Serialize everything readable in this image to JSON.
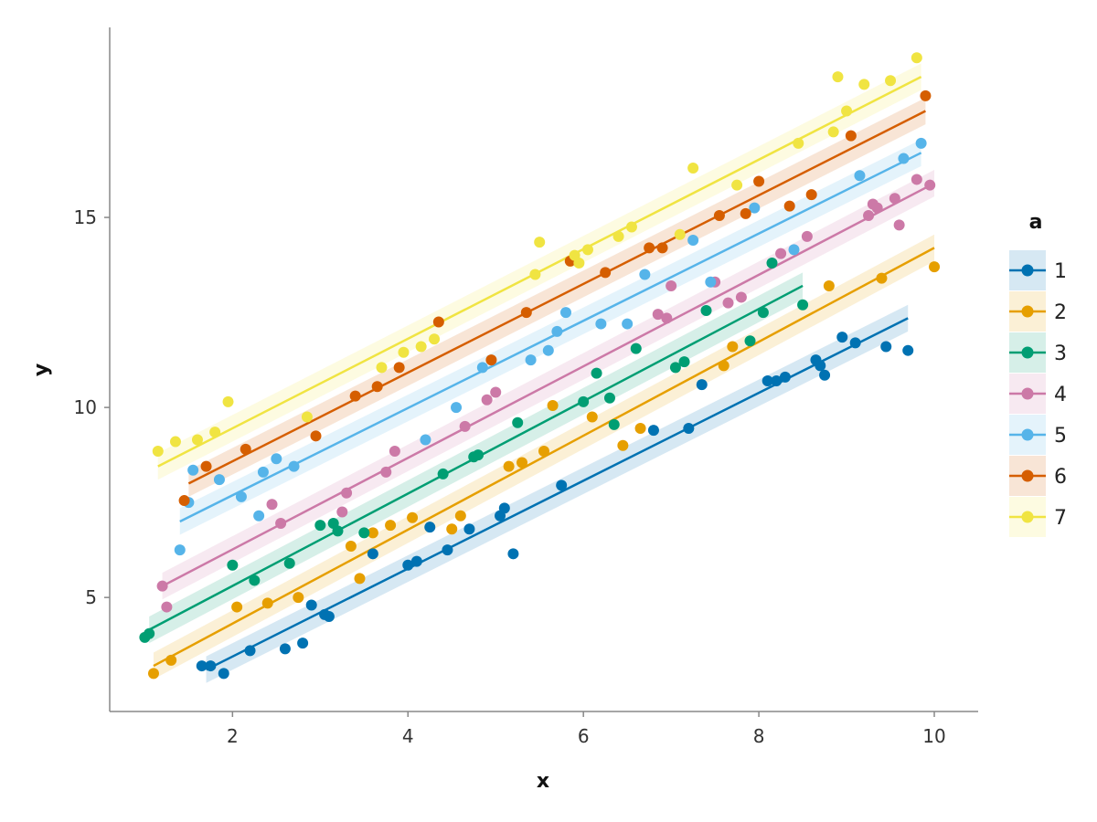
{
  "chart_data": {
    "type": "scatter",
    "xlabel": "x",
    "ylabel": "y",
    "xlim": [
      0.6,
      10.5
    ],
    "ylim": [
      2.0,
      20.0
    ],
    "x_ticks": [
      2,
      4,
      6,
      8,
      10
    ],
    "y_ticks": [
      5,
      10,
      15
    ],
    "grid": false,
    "legend": {
      "title": "a",
      "position": "right"
    },
    "series": [
      {
        "name": "1",
        "color": "#0072B2",
        "fit": {
          "x": [
            1.7,
            9.7
          ],
          "y": [
            3.1,
            12.35
          ]
        },
        "points": [
          [
            1.65,
            3.2
          ],
          [
            1.75,
            3.2
          ],
          [
            1.9,
            3.0
          ],
          [
            2.2,
            3.6
          ],
          [
            2.6,
            3.65
          ],
          [
            2.8,
            3.8
          ],
          [
            2.9,
            4.8
          ],
          [
            3.05,
            4.55
          ],
          [
            3.1,
            4.5
          ],
          [
            3.6,
            6.15
          ],
          [
            4.0,
            5.85
          ],
          [
            4.1,
            5.95
          ],
          [
            4.25,
            6.85
          ],
          [
            4.45,
            6.25
          ],
          [
            4.7,
            6.8
          ],
          [
            5.05,
            7.15
          ],
          [
            5.1,
            7.35
          ],
          [
            5.2,
            6.15
          ],
          [
            5.75,
            7.95
          ],
          [
            6.8,
            9.4
          ],
          [
            7.2,
            9.45
          ],
          [
            7.35,
            10.6
          ],
          [
            8.1,
            10.7
          ],
          [
            8.2,
            10.7
          ],
          [
            8.3,
            10.8
          ],
          [
            8.65,
            11.25
          ],
          [
            8.7,
            11.1
          ],
          [
            8.75,
            10.85
          ],
          [
            8.95,
            11.85
          ],
          [
            9.1,
            11.7
          ],
          [
            9.45,
            11.6
          ],
          [
            9.7,
            11.5
          ]
        ]
      },
      {
        "name": "2",
        "color": "#E69F00",
        "fit": {
          "x": [
            1.1,
            10.0
          ],
          "y": [
            3.2,
            14.2
          ]
        },
        "points": [
          [
            1.1,
            3.0
          ],
          [
            1.3,
            3.35
          ],
          [
            2.05,
            4.75
          ],
          [
            2.4,
            4.85
          ],
          [
            2.75,
            5.0
          ],
          [
            3.35,
            6.35
          ],
          [
            3.45,
            5.5
          ],
          [
            3.6,
            6.7
          ],
          [
            3.8,
            6.9
          ],
          [
            4.05,
            7.1
          ],
          [
            4.5,
            6.8
          ],
          [
            4.6,
            7.15
          ],
          [
            5.15,
            8.45
          ],
          [
            5.3,
            8.55
          ],
          [
            5.55,
            8.85
          ],
          [
            5.65,
            10.05
          ],
          [
            6.1,
            9.75
          ],
          [
            6.45,
            9.0
          ],
          [
            6.65,
            9.45
          ],
          [
            7.6,
            11.1
          ],
          [
            7.7,
            11.6
          ],
          [
            8.8,
            13.2
          ],
          [
            9.4,
            13.4
          ],
          [
            10.0,
            13.7
          ]
        ]
      },
      {
        "name": "3",
        "color": "#009E73",
        "fit": {
          "x": [
            1.05,
            8.5
          ],
          "y": [
            4.15,
            13.2
          ]
        },
        "points": [
          [
            1.0,
            3.95
          ],
          [
            1.05,
            4.05
          ],
          [
            2.0,
            5.85
          ],
          [
            2.25,
            5.45
          ],
          [
            2.65,
            5.9
          ],
          [
            3.0,
            6.9
          ],
          [
            3.15,
            6.95
          ],
          [
            3.2,
            6.75
          ],
          [
            3.5,
            6.7
          ],
          [
            4.4,
            8.25
          ],
          [
            4.75,
            8.7
          ],
          [
            4.8,
            8.75
          ],
          [
            5.25,
            9.6
          ],
          [
            6.0,
            10.15
          ],
          [
            6.15,
            10.9
          ],
          [
            6.3,
            10.25
          ],
          [
            6.35,
            9.55
          ],
          [
            6.6,
            11.55
          ],
          [
            7.05,
            11.05
          ],
          [
            7.15,
            11.2
          ],
          [
            7.4,
            12.55
          ],
          [
            7.9,
            11.75
          ],
          [
            8.05,
            12.5
          ],
          [
            8.15,
            13.8
          ],
          [
            8.5,
            12.7
          ]
        ]
      },
      {
        "name": "4",
        "color": "#CC79A7",
        "fit": {
          "x": [
            1.2,
            10.0
          ],
          "y": [
            5.3,
            15.9
          ]
        },
        "points": [
          [
            1.2,
            5.3
          ],
          [
            1.25,
            4.75
          ],
          [
            2.45,
            7.45
          ],
          [
            2.55,
            6.95
          ],
          [
            3.25,
            7.25
          ],
          [
            3.3,
            7.75
          ],
          [
            3.75,
            8.3
          ],
          [
            3.85,
            8.85
          ],
          [
            4.65,
            9.5
          ],
          [
            4.9,
            10.2
          ],
          [
            5.0,
            10.4
          ],
          [
            6.85,
            12.45
          ],
          [
            6.95,
            12.35
          ],
          [
            7.0,
            13.2
          ],
          [
            7.5,
            13.3
          ],
          [
            7.65,
            12.75
          ],
          [
            7.8,
            12.9
          ],
          [
            8.25,
            14.05
          ],
          [
            8.55,
            14.5
          ],
          [
            9.25,
            15.05
          ],
          [
            9.3,
            15.35
          ],
          [
            9.35,
            15.25
          ],
          [
            9.55,
            15.5
          ],
          [
            9.6,
            14.8
          ],
          [
            9.8,
            16.0
          ],
          [
            9.95,
            15.85
          ]
        ]
      },
      {
        "name": "5",
        "color": "#56B4E9",
        "fit": {
          "x": [
            1.4,
            9.85
          ],
          "y": [
            7.0,
            16.7
          ]
        },
        "points": [
          [
            1.4,
            6.25
          ],
          [
            1.5,
            7.5
          ],
          [
            1.55,
            8.35
          ],
          [
            1.85,
            8.1
          ],
          [
            2.1,
            7.65
          ],
          [
            2.3,
            7.15
          ],
          [
            2.35,
            8.3
          ],
          [
            2.5,
            8.65
          ],
          [
            2.7,
            8.45
          ],
          [
            4.2,
            9.15
          ],
          [
            4.55,
            10.0
          ],
          [
            4.85,
            11.05
          ],
          [
            5.4,
            11.25
          ],
          [
            5.6,
            11.5
          ],
          [
            5.7,
            12.0
          ],
          [
            5.8,
            12.5
          ],
          [
            6.2,
            12.2
          ],
          [
            6.5,
            12.2
          ],
          [
            6.7,
            13.5
          ],
          [
            7.25,
            14.4
          ],
          [
            7.45,
            13.3
          ],
          [
            7.95,
            15.25
          ],
          [
            8.4,
            14.15
          ],
          [
            9.15,
            16.1
          ],
          [
            9.65,
            16.55
          ],
          [
            9.85,
            16.95
          ]
        ]
      },
      {
        "name": "6",
        "color": "#D55E00",
        "fit": {
          "x": [
            1.5,
            9.9
          ],
          "y": [
            8.0,
            17.8
          ]
        },
        "points": [
          [
            1.45,
            7.55
          ],
          [
            1.7,
            8.45
          ],
          [
            2.15,
            8.9
          ],
          [
            2.95,
            9.25
          ],
          [
            3.4,
            10.3
          ],
          [
            3.65,
            10.55
          ],
          [
            3.9,
            11.05
          ],
          [
            4.35,
            12.25
          ],
          [
            4.95,
            11.25
          ],
          [
            5.35,
            12.5
          ],
          [
            5.85,
            13.85
          ],
          [
            6.25,
            13.55
          ],
          [
            6.75,
            14.2
          ],
          [
            6.9,
            14.2
          ],
          [
            7.55,
            15.05
          ],
          [
            7.85,
            15.1
          ],
          [
            8.0,
            15.95
          ],
          [
            8.35,
            15.3
          ],
          [
            8.6,
            15.6
          ],
          [
            9.05,
            17.15
          ],
          [
            9.9,
            18.2
          ]
        ]
      },
      {
        "name": "7",
        "color": "#F0E442",
        "fit": {
          "x": [
            1.15,
            9.85
          ],
          "y": [
            8.45,
            18.7
          ]
        },
        "points": [
          [
            1.15,
            8.85
          ],
          [
            1.35,
            9.1
          ],
          [
            1.6,
            9.15
          ],
          [
            1.8,
            9.35
          ],
          [
            1.95,
            10.15
          ],
          [
            2.85,
            9.75
          ],
          [
            3.7,
            11.05
          ],
          [
            3.95,
            11.45
          ],
          [
            4.15,
            11.6
          ],
          [
            4.3,
            11.8
          ],
          [
            5.45,
            13.5
          ],
          [
            5.5,
            14.35
          ],
          [
            5.9,
            14.0
          ],
          [
            5.95,
            13.8
          ],
          [
            6.05,
            14.15
          ],
          [
            6.4,
            14.5
          ],
          [
            6.55,
            14.75
          ],
          [
            7.1,
            14.55
          ],
          [
            7.25,
            16.3
          ],
          [
            7.75,
            15.85
          ],
          [
            8.45,
            16.95
          ],
          [
            8.85,
            17.25
          ],
          [
            8.9,
            18.7
          ],
          [
            9.0,
            17.8
          ],
          [
            9.2,
            18.5
          ],
          [
            9.5,
            18.6
          ],
          [
            9.8,
            19.2
          ]
        ]
      }
    ]
  }
}
